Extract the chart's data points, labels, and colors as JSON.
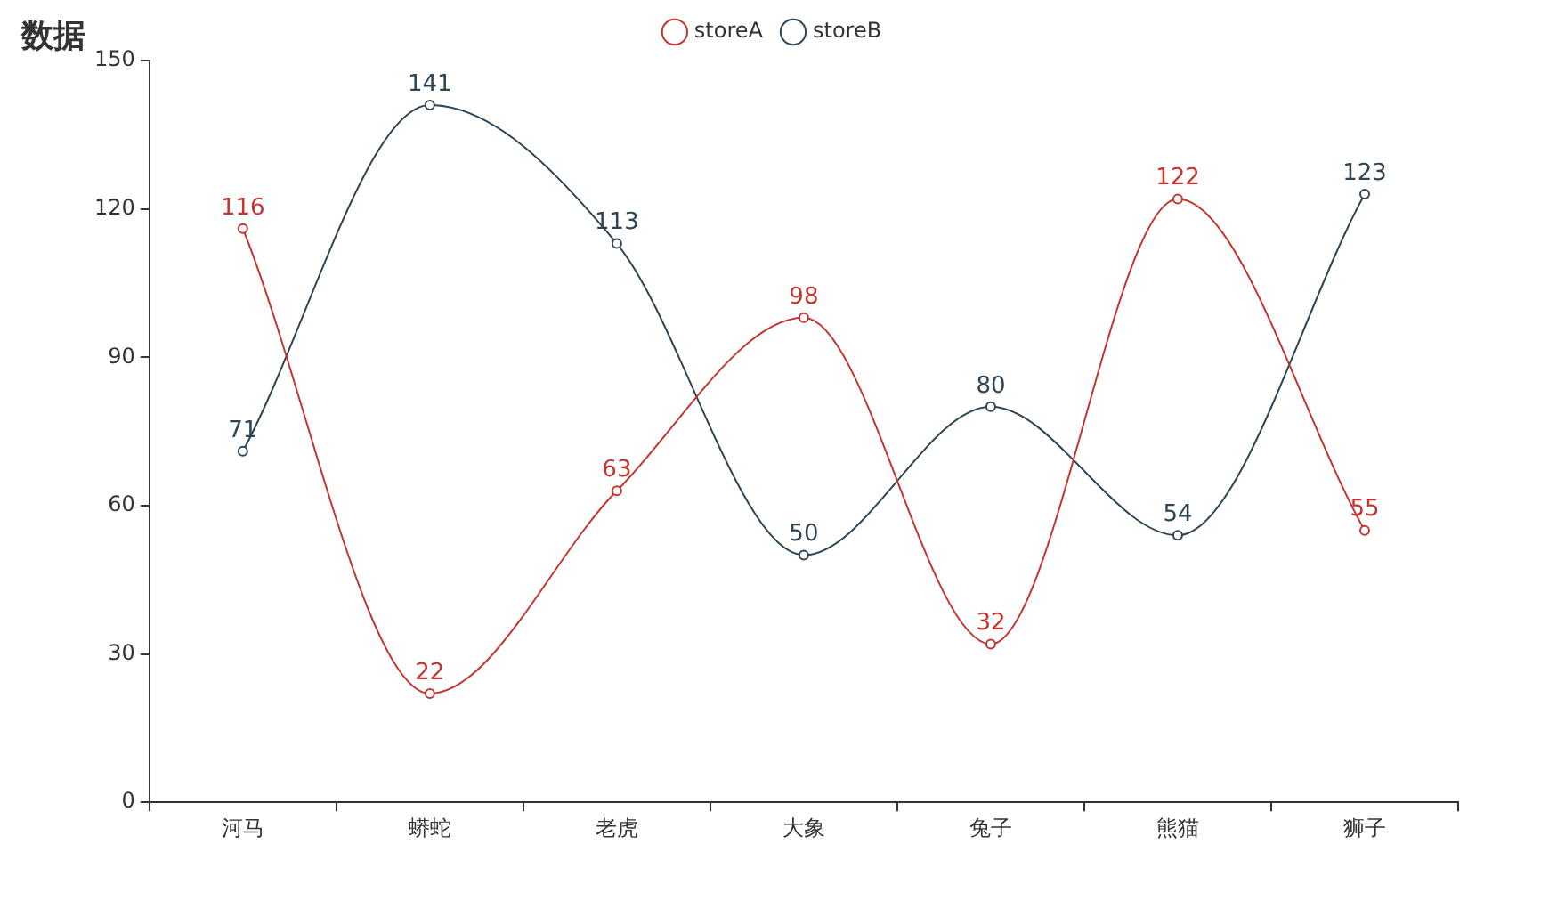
{
  "chart_data": {
    "type": "line",
    "title": "数据",
    "categories": [
      "河马",
      "蟒蛇",
      "老虎",
      "大象",
      "兔子",
      "熊猫",
      "狮子"
    ],
    "series": [
      {
        "name": "storeA",
        "color": "#c23531",
        "values": [
          116,
          22,
          63,
          98,
          32,
          122,
          55
        ]
      },
      {
        "name": "storeB",
        "color": "#2f4554",
        "values": [
          71,
          141,
          113,
          50,
          80,
          54,
          123
        ]
      }
    ],
    "ylim": [
      0,
      150
    ],
    "yticks": [
      0,
      30,
      60,
      90,
      120,
      150
    ],
    "grid": false,
    "legend": "top",
    "marker": "circle",
    "data_labels": true
  }
}
